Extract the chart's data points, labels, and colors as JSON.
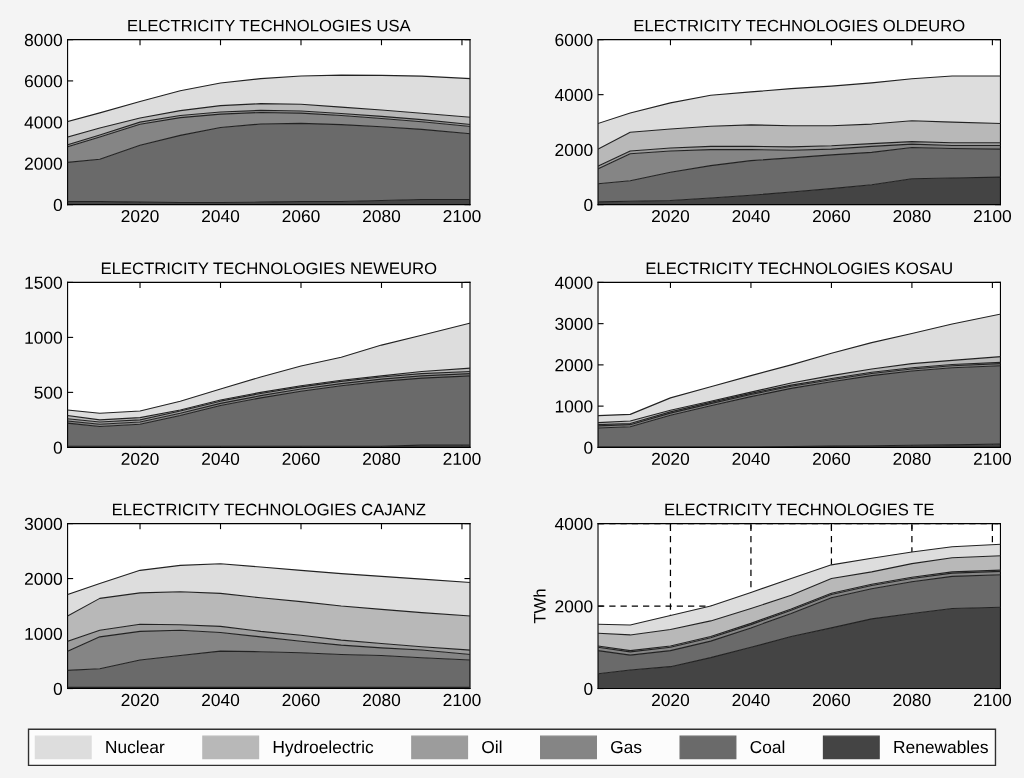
{
  "chart_data": [
    {
      "type": "area",
      "stacked": true,
      "title": "ELECTRICITY TECHNOLOGIES USA",
      "legend": "bottom",
      "x": [
        2002,
        2010,
        2020,
        2030,
        2040,
        2050,
        2060,
        2070,
        2080,
        2090,
        2102
      ],
      "xlim": [
        2002,
        2102
      ],
      "xticks": [
        2020,
        2040,
        2060,
        2080,
        2100
      ],
      "ylim": [
        0,
        8000
      ],
      "yticks": [
        0,
        2000,
        4000,
        6000,
        8000
      ],
      "series": [
        {
          "name": "Renewables",
          "color": "#444444",
          "values": [
            150,
            150,
            120,
            100,
            100,
            120,
            150,
            150,
            200,
            250,
            250
          ]
        },
        {
          "name": "Coal",
          "color": "#6a6a6a",
          "values": [
            1900,
            2050,
            2760,
            3260,
            3640,
            3790,
            3790,
            3730,
            3580,
            3400,
            3190
          ]
        },
        {
          "name": "Gas",
          "color": "#858585",
          "values": [
            750,
            1080,
            1020,
            860,
            650,
            560,
            500,
            440,
            400,
            370,
            350
          ]
        },
        {
          "name": "Oil",
          "color": "#9c9c9c",
          "values": [
            100,
            100,
            100,
            100,
            100,
            100,
            100,
            100,
            100,
            100,
            100
          ]
        },
        {
          "name": "Hydroelectric",
          "color": "#b8b8b8",
          "values": [
            380,
            340,
            200,
            240,
            310,
            330,
            330,
            310,
            310,
            310,
            350
          ]
        },
        {
          "name": "Nuclear",
          "color": "#dddddd",
          "values": [
            750,
            730,
            800,
            960,
            1100,
            1210,
            1370,
            1550,
            1680,
            1800,
            1870
          ]
        }
      ]
    },
    {
      "type": "area",
      "stacked": true,
      "title": "ELECTRICITY TECHNOLOGIES OLDEURO",
      "x": [
        2002,
        2010,
        2020,
        2030,
        2040,
        2050,
        2060,
        2070,
        2080,
        2090,
        2102
      ],
      "xlim": [
        2002,
        2102
      ],
      "xticks": [
        2020,
        2040,
        2060,
        2080,
        2100
      ],
      "ylim": [
        0,
        6000
      ],
      "yticks": [
        0,
        2000,
        4000,
        6000
      ],
      "series": [
        {
          "color": "#444444",
          "values": [
            100,
            120,
            150,
            240,
            340,
            460,
            580,
            720,
            940,
            970,
            1000
          ]
        },
        {
          "color": "#6a6a6a",
          "values": [
            660,
            750,
            1030,
            1180,
            1260,
            1240,
            1230,
            1180,
            1140,
            1070,
            1020
          ]
        },
        {
          "color": "#858585",
          "values": [
            540,
            980,
            770,
            580,
            400,
            280,
            210,
            220,
            120,
            110,
            130
          ]
        },
        {
          "color": "#9c9c9c",
          "values": [
            100,
            100,
            110,
            120,
            120,
            120,
            120,
            100,
            90,
            100,
            100
          ]
        },
        {
          "color": "#b8b8b8",
          "values": [
            620,
            680,
            690,
            730,
            780,
            770,
            730,
            710,
            760,
            750,
            700
          ]
        },
        {
          "color": "#dddddd",
          "values": [
            930,
            700,
            950,
            1130,
            1200,
            1350,
            1440,
            1500,
            1530,
            1680,
            1730
          ]
        }
      ]
    },
    {
      "type": "area",
      "stacked": true,
      "title": "ELECTRICITY TECHNOLOGIES NEWEURO",
      "x": [
        2002,
        2010,
        2020,
        2030,
        2040,
        2050,
        2060,
        2070,
        2080,
        2090,
        2102
      ],
      "xlim": [
        2002,
        2102
      ],
      "xticks": [
        2020,
        2040,
        2060,
        2080,
        2100
      ],
      "ylim": [
        0,
        1500
      ],
      "yticks": [
        0,
        500,
        1000,
        1500
      ],
      "series": [
        {
          "color": "#444444",
          "values": [
            10,
            10,
            10,
            10,
            10,
            10,
            10,
            10,
            10,
            20,
            20
          ]
        },
        {
          "color": "#6a6a6a",
          "values": [
            210,
            180,
            200,
            280,
            370,
            440,
            500,
            550,
            590,
            610,
            630
          ]
        },
        {
          "color": "#858585",
          "values": [
            20,
            20,
            20,
            20,
            20,
            20,
            20,
            20,
            20,
            20,
            20
          ]
        },
        {
          "color": "#9c9c9c",
          "values": [
            20,
            20,
            20,
            20,
            20,
            20,
            20,
            20,
            20,
            20,
            20
          ]
        },
        {
          "color": "#b8b8b8",
          "values": [
            30,
            20,
            20,
            10,
            10,
            10,
            10,
            10,
            10,
            20,
            30
          ]
        },
        {
          "color": "#dddddd",
          "values": [
            50,
            60,
            60,
            80,
            100,
            140,
            180,
            210,
            280,
            330,
            410
          ]
        }
      ]
    },
    {
      "type": "area",
      "stacked": true,
      "title": "ELECTRICITY TECHNOLOGIES KOSAU",
      "x": [
        2002,
        2010,
        2020,
        2030,
        2040,
        2050,
        2060,
        2070,
        2080,
        2090,
        2102
      ],
      "xlim": [
        2002,
        2102
      ],
      "xticks": [
        2020,
        2040,
        2060,
        2080,
        2100
      ],
      "ylim": [
        0,
        4000
      ],
      "yticks": [
        0,
        1000,
        2000,
        3000,
        4000
      ],
      "series": [
        {
          "color": "#444444",
          "values": [
            10,
            10,
            10,
            10,
            10,
            20,
            30,
            40,
            50,
            60,
            80
          ]
        },
        {
          "color": "#6a6a6a",
          "values": [
            460,
            490,
            770,
            1000,
            1220,
            1410,
            1560,
            1700,
            1800,
            1870,
            1900
          ]
        },
        {
          "color": "#858585",
          "values": [
            50,
            50,
            50,
            50,
            50,
            50,
            50,
            50,
            50,
            50,
            50
          ]
        },
        {
          "color": "#9c9c9c",
          "values": [
            30,
            30,
            30,
            30,
            30,
            30,
            30,
            30,
            30,
            30,
            30
          ]
        },
        {
          "color": "#b8b8b8",
          "values": [
            50,
            60,
            40,
            30,
            30,
            50,
            70,
            80,
            100,
            100,
            140
          ]
        },
        {
          "color": "#dddddd",
          "values": [
            170,
            160,
            300,
            350,
            400,
            440,
            540,
            640,
            730,
            880,
            1030
          ]
        }
      ]
    },
    {
      "type": "area",
      "stacked": true,
      "title": "ELECTRICITY TECHNOLOGIES CAJANZ",
      "x": [
        2002,
        2010,
        2020,
        2030,
        2040,
        2050,
        2060,
        2070,
        2080,
        2090,
        2102
      ],
      "xlim": [
        2002,
        2102
      ],
      "xticks": [
        2020,
        2040,
        2060,
        2080,
        2100
      ],
      "ylim": [
        0,
        3000
      ],
      "yticks": [
        0,
        1000,
        2000,
        3000
      ],
      "series": [
        {
          "color": "#444444",
          "values": [
            20,
            20,
            20,
            20,
            20,
            20,
            20,
            20,
            20,
            20,
            20
          ]
        },
        {
          "color": "#6a6a6a",
          "values": [
            310,
            340,
            500,
            580,
            660,
            650,
            630,
            600,
            580,
            540,
            500
          ]
        },
        {
          "color": "#858585",
          "values": [
            350,
            580,
            520,
            460,
            340,
            270,
            210,
            170,
            140,
            140,
            100
          ]
        },
        {
          "color": "#9c9c9c",
          "values": [
            180,
            120,
            130,
            100,
            110,
            100,
            110,
            90,
            80,
            60,
            80
          ]
        },
        {
          "color": "#b8b8b8",
          "values": [
            460,
            580,
            570,
            600,
            600,
            610,
            610,
            620,
            620,
            620,
            620
          ]
        },
        {
          "color": "#dddddd",
          "values": [
            390,
            270,
            410,
            480,
            540,
            560,
            570,
            590,
            600,
            610,
            610
          ]
        }
      ]
    },
    {
      "type": "area",
      "stacked": true,
      "title": "ELECTRICITY TECHNOLOGIES TE",
      "ylabel": "TWh",
      "grid": true,
      "x": [
        2002,
        2010,
        2020,
        2030,
        2040,
        2050,
        2060,
        2070,
        2080,
        2090,
        2102
      ],
      "xlim": [
        2002,
        2102
      ],
      "xticks": [
        2020,
        2040,
        2060,
        2080,
        2100
      ],
      "ylim": [
        0,
        4000
      ],
      "yticks": [
        0,
        2000,
        4000
      ],
      "series": [
        {
          "color": "#444444",
          "values": [
            360,
            450,
            530,
            750,
            1000,
            1260,
            1470,
            1690,
            1820,
            1940,
            1970
          ]
        },
        {
          "color": "#6a6a6a",
          "values": [
            560,
            360,
            390,
            400,
            470,
            560,
            730,
            730,
            770,
            780,
            790
          ]
        },
        {
          "color": "#858585",
          "values": [
            80,
            80,
            80,
            80,
            80,
            80,
            80,
            80,
            80,
            80,
            80
          ]
        },
        {
          "color": "#9c9c9c",
          "values": [
            30,
            30,
            30,
            30,
            30,
            30,
            30,
            30,
            30,
            30,
            30
          ]
        },
        {
          "color": "#b8b8b8",
          "values": [
            310,
            380,
            400,
            380,
            360,
            330,
            360,
            300,
            330,
            340,
            350
          ]
        },
        {
          "color": "#dddddd",
          "values": [
            220,
            240,
            340,
            360,
            390,
            410,
            330,
            330,
            280,
            270,
            280
          ]
        }
      ]
    }
  ]
}
